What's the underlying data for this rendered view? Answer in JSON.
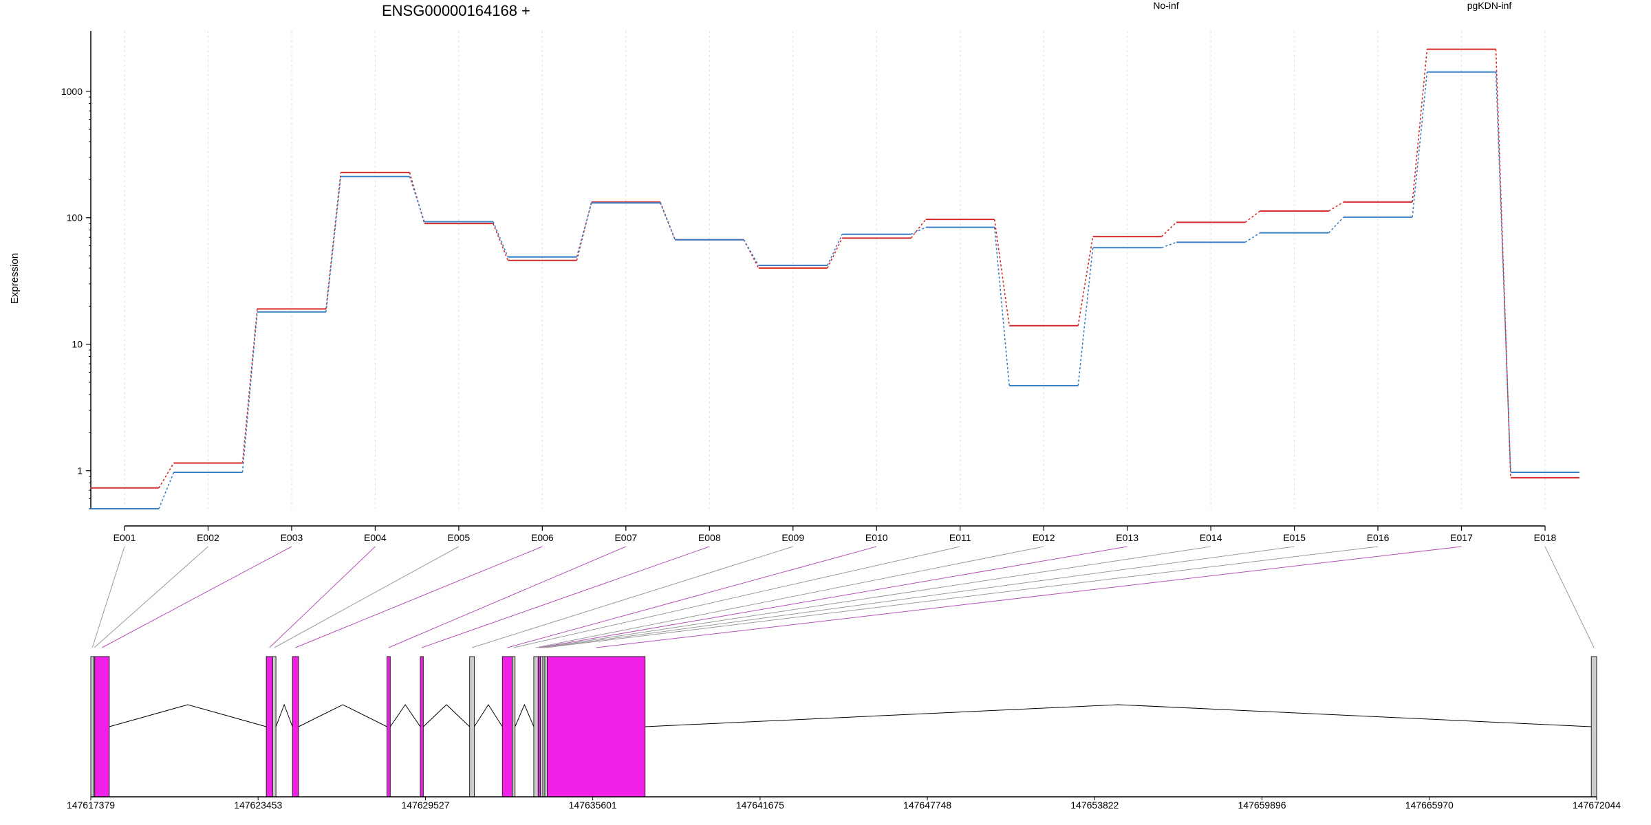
{
  "chart_data": {
    "type": "line",
    "title": "ENSG00000164168 +",
    "ylabel": "Expression",
    "xlabel": "",
    "yscale": "log",
    "ylim": [
      0.5,
      3000
    ],
    "ytick_labels": [
      "1",
      "10",
      "100",
      "1000"
    ],
    "ytick_values": [
      1,
      10,
      100,
      1000
    ],
    "categories": [
      "E001",
      "E002",
      "E003",
      "E004",
      "E005",
      "E006",
      "E007",
      "E008",
      "E009",
      "E010",
      "E011",
      "E012",
      "E013",
      "E014",
      "E015",
      "E016",
      "E017",
      "E018"
    ],
    "series": [
      {
        "name": "No-inf",
        "color": "#d42a2a",
        "values": [
          0.73,
          1.15,
          19,
          228,
          90,
          46,
          133,
          67,
          40,
          69,
          97,
          14,
          71,
          92,
          113,
          133,
          2150,
          0.88
        ]
      },
      {
        "name": "pgKDN-inf",
        "color": "#3a7fc4",
        "values": [
          0.5,
          0.97,
          18,
          212,
          93,
          49,
          131,
          67,
          42,
          74,
          84,
          4.7,
          58,
          64,
          76,
          101,
          1420,
          0.97
        ]
      }
    ],
    "legend_position": "top-right",
    "grid": true,
    "gene_model": {
      "axis_labels": [
        "147617379",
        "147623453",
        "147629527",
        "147635601",
        "147641675",
        "147647748",
        "147653822",
        "147659896",
        "147665970",
        "147672044"
      ],
      "axis_values": [
        147617379,
        147623453,
        147629527,
        147635601,
        147641675,
        147647748,
        147653822,
        147659896,
        147665970,
        147672044
      ],
      "exons": [
        {
          "id": "E001",
          "start": 147617379,
          "end": 147617490,
          "color": "#cccccc"
        },
        {
          "id": "E002",
          "start": 147617490,
          "end": 147617520,
          "color": "#cccccc"
        },
        {
          "id": "E003",
          "start": 147617520,
          "end": 147618050,
          "color": "#f020e6"
        },
        {
          "id": "E004",
          "start": 147623750,
          "end": 147623980,
          "color": "#f020e6"
        },
        {
          "id": "E005",
          "start": 147623980,
          "end": 147624100,
          "color": "#cccccc"
        },
        {
          "id": "E006",
          "start": 147624700,
          "end": 147624920,
          "color": "#f020e6"
        },
        {
          "id": "E007",
          "start": 147628130,
          "end": 147628250,
          "color": "#f020e6"
        },
        {
          "id": "E008",
          "start": 147629340,
          "end": 147629450,
          "color": "#f020e6"
        },
        {
          "id": "E009",
          "start": 147631130,
          "end": 147631300,
          "color": "#cccccc"
        },
        {
          "id": "E010",
          "start": 147632320,
          "end": 147632680,
          "color": "#f020e6"
        },
        {
          "id": "E011",
          "start": 147632680,
          "end": 147632780,
          "color": "#cccccc"
        },
        {
          "id": "E012",
          "start": 147633460,
          "end": 147633620,
          "color": "#cccccc"
        },
        {
          "id": "E013",
          "start": 147633620,
          "end": 147633700,
          "color": "#f020e6"
        },
        {
          "id": "E014",
          "start": 147633700,
          "end": 147633790,
          "color": "#cccccc"
        },
        {
          "id": "E015",
          "start": 147633790,
          "end": 147633860,
          "color": "#cccccc"
        },
        {
          "id": "E016",
          "start": 147633860,
          "end": 147633950,
          "color": "#cccccc"
        },
        {
          "id": "E017",
          "start": 147633950,
          "end": 147637500,
          "color": "#f020e6"
        },
        {
          "id": "E018",
          "start": 147671850,
          "end": 147672044,
          "color": "#cccccc"
        }
      ]
    }
  }
}
